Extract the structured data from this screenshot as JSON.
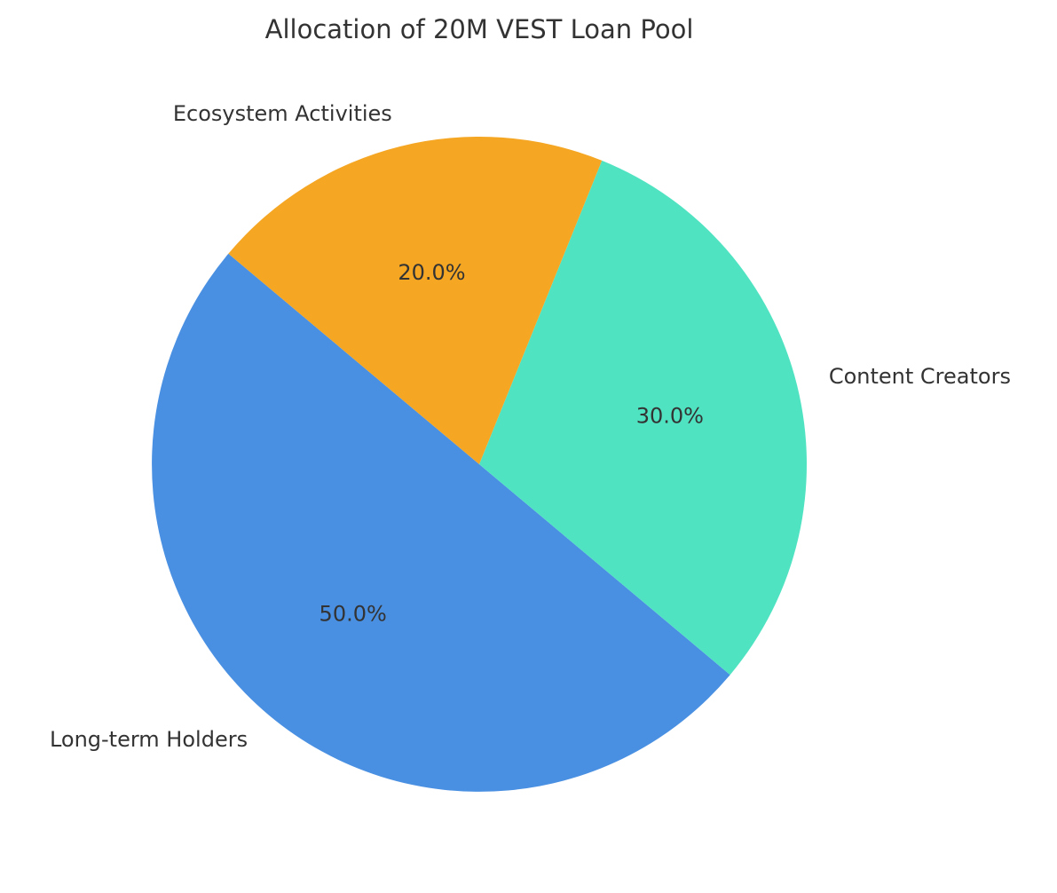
{
  "chart_data": {
    "type": "pie",
    "title": "Allocation of 20M VEST Loan Pool",
    "categories": [
      "Long-term Holders",
      "Content Creators",
      "Ecosystem Activities"
    ],
    "values": [
      50,
      30,
      20
    ],
    "value_labels": [
      "50.0%",
      "30.0%",
      "20.0%"
    ],
    "colors": [
      "#4a90e2",
      "#50e3c2",
      "#f5a623"
    ]
  }
}
